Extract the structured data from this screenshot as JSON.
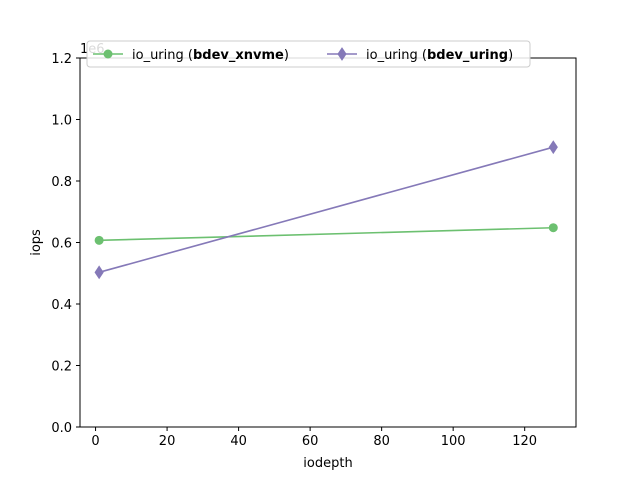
{
  "chart_data": {
    "type": "line",
    "xlabel": "iodepth",
    "ylabel": "iops",
    "offset_text": "1e6",
    "xlim": [
      -4.35,
      134.35
    ],
    "ylim": [
      0,
      1.2
    ],
    "xticks": [
      0,
      20,
      40,
      60,
      80,
      100,
      120
    ],
    "yticks": [
      0.0,
      0.2,
      0.4,
      0.6,
      0.8,
      1.0,
      1.2
    ],
    "ytick_labels": [
      "0.0",
      "0.2",
      "0.4",
      "0.6",
      "0.8",
      "1.0",
      "1.2"
    ],
    "grid": false,
    "legend_position": "top",
    "series": [
      {
        "name": "io_uring (bdev_xnvme)",
        "legend_prefix": "io_uring (",
        "legend_bold": "bdev_xnvme",
        "legend_suffix": ")",
        "color": "#6cc070",
        "marker": "circle",
        "x": [
          1,
          128
        ],
        "y": [
          0.607,
          0.648
        ]
      },
      {
        "name": "io_uring (bdev_uring)",
        "legend_prefix": "io_uring (",
        "legend_bold": "bdev_uring",
        "legend_suffix": ")",
        "color": "#8579b8",
        "marker": "diamond",
        "x": [
          1,
          128
        ],
        "y": [
          0.503,
          0.91
        ]
      }
    ]
  }
}
